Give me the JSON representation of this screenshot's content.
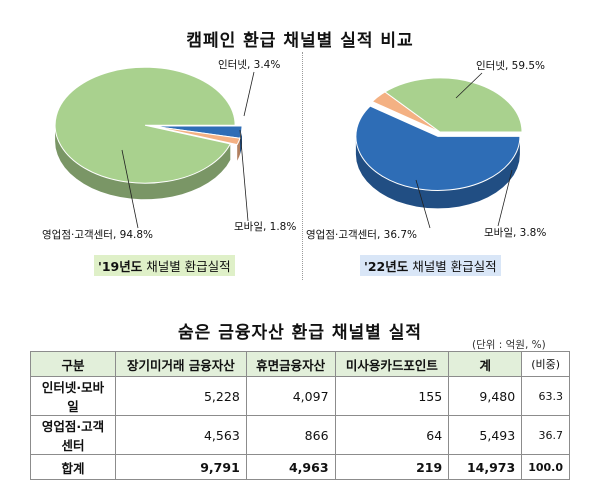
{
  "title_top": "캠페인 환급 채널별 실적 비교",
  "title_bottom": "숨은 금융자산 환급 채널별 실적",
  "unit_note": "(단위 : 억원, %)",
  "colors": {
    "internet": "#2e6db6",
    "mobile": "#f4b183",
    "offline": "#a9d18e"
  },
  "chart_data": [
    {
      "type": "pie",
      "caption_year": "'19년도",
      "caption_rest": " 채널별 환급실적",
      "slices": [
        {
          "label": "인터넷",
          "value": 3.4,
          "text": "인터넷, 3.4%",
          "color": "#2e6db6"
        },
        {
          "label": "모바일",
          "value": 1.8,
          "text": "모바일, 1.8%",
          "color": "#f4b183"
        },
        {
          "label": "영업점·고객센터",
          "value": 94.8,
          "text": "영업점·고객센터, 94.8%",
          "color": "#a9d18e"
        }
      ]
    },
    {
      "type": "pie",
      "caption_year": "'22년도",
      "caption_rest": " 채널별 환급실적",
      "slices": [
        {
          "label": "인터넷",
          "value": 59.5,
          "text": "인터넷, 59.5%",
          "color": "#2e6db6"
        },
        {
          "label": "모바일",
          "value": 3.8,
          "text": "모바일, 3.8%",
          "color": "#f4b183"
        },
        {
          "label": "영업점·고객센터",
          "value": 36.7,
          "text": "영업점·고객센터, 36.7%",
          "color": "#a9d18e"
        }
      ]
    }
  ],
  "table": {
    "headers": [
      "구분",
      "장기미거래 금융자산",
      "휴면금융자산",
      "미사용카드포인트",
      "계",
      "(비중)"
    ],
    "rows": [
      [
        "인터넷·모바일",
        "5,228",
        "4,097",
        "155",
        "9,480",
        "63.3"
      ],
      [
        "영업점·고객센터",
        "4,563",
        "866",
        "64",
        "5,493",
        "36.7"
      ],
      [
        "합계",
        "9,791",
        "4,963",
        "219",
        "14,973",
        "100.0"
      ]
    ]
  }
}
